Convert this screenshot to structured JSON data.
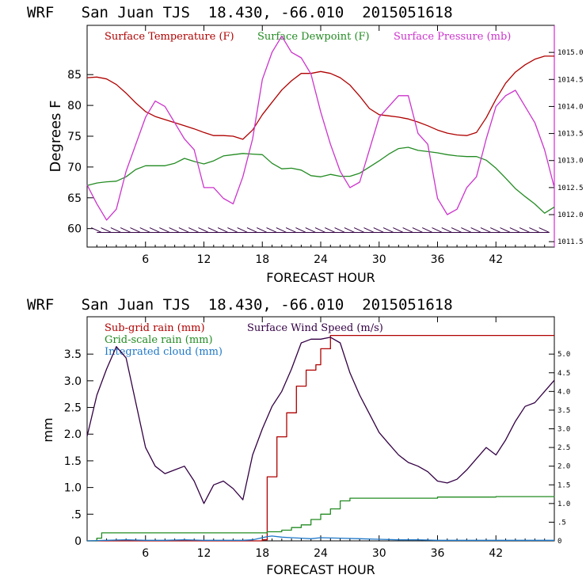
{
  "chart_data": [
    {
      "type": "line",
      "title": "WRF   San Juan TJS  18.430, -66.010  2015051618",
      "xlabel": "FORECAST HOUR",
      "ylabel": "Degrees F",
      "xlim": [
        0,
        48
      ],
      "ylim": [
        57,
        93
      ],
      "y2lim": [
        1011.4,
        1015.5
      ],
      "x_ticks": [
        6,
        12,
        18,
        24,
        30,
        36,
        42
      ],
      "y_ticks": [
        60,
        65,
        70,
        75,
        80,
        85
      ],
      "y_tick_labels": [
        "60",
        "65",
        "70",
        "75",
        "80",
        "85"
      ],
      "y2_ticks": [
        1011.5,
        1012.0,
        1012.5,
        1013.0,
        1013.5,
        1014.0,
        1014.5,
        1015.0
      ],
      "y2_tick_labels": [
        "1011.5",
        "1012.0",
        "1012.5",
        "1013.0",
        "1013.5",
        "1014.0",
        "1014.5",
        "1015.0"
      ],
      "legend": [
        "Surface Temperature (F)",
        "Surface Dewpoint (F)",
        "Surface Pressure (mb)"
      ],
      "series": [
        {
          "name": "Surface Temperature (F)",
          "axis": "left",
          "color": "#b00000",
          "x": [
            0,
            1,
            2,
            3,
            4,
            5,
            6,
            7,
            8,
            9,
            10,
            11,
            12,
            13,
            14,
            15,
            16,
            17,
            18,
            19,
            20,
            21,
            22,
            23,
            24,
            25,
            26,
            27,
            28,
            29,
            30,
            31,
            32,
            33,
            34,
            35,
            36,
            37,
            38,
            39,
            40,
            41,
            42,
            43,
            44,
            45,
            46,
            47,
            48
          ],
          "values": [
            84.5,
            84.6,
            84.3,
            83.4,
            82,
            80.4,
            79,
            78.2,
            77.7,
            77.2,
            76.7,
            76.2,
            75.6,
            75.1,
            75.1,
            75,
            74.5,
            76,
            78.5,
            80.5,
            82.5,
            84,
            85.2,
            85.2,
            85.5,
            85.2,
            84.5,
            83.3,
            81.5,
            79.5,
            78.5,
            78.3,
            78.1,
            77.8,
            77.3,
            76.7,
            76,
            75.5,
            75.2,
            75.1,
            75.6,
            78,
            81,
            83.6,
            85.4,
            86.6,
            87.5,
            88,
            88
          ]
        },
        {
          "name": "Surface Dewpoint (F)",
          "axis": "left",
          "color": "#228b22",
          "x": [
            0,
            1,
            2,
            3,
            4,
            5,
            6,
            7,
            8,
            9,
            10,
            11,
            12,
            13,
            14,
            15,
            16,
            17,
            18,
            19,
            20,
            21,
            22,
            23,
            24,
            25,
            26,
            27,
            28,
            29,
            30,
            31,
            32,
            33,
            34,
            35,
            36,
            37,
            38,
            39,
            40,
            41,
            42,
            43,
            44,
            45,
            46,
            47,
            48
          ],
          "values": [
            67,
            67.4,
            67.6,
            67.7,
            68.4,
            69.6,
            70.2,
            70.2,
            70.2,
            70.6,
            71.4,
            70.9,
            70.5,
            71,
            71.8,
            72,
            72.2,
            72.1,
            72,
            70.6,
            69.7,
            69.8,
            69.5,
            68.6,
            68.4,
            68.8,
            68.5,
            68.5,
            69,
            70,
            71,
            72.1,
            73,
            73.2,
            72.7,
            72.5,
            72.3,
            72,
            71.8,
            71.7,
            71.7,
            71.1,
            69.8,
            68.2,
            66.5,
            65.2,
            64,
            62.5,
            63.5
          ]
        },
        {
          "name": "Surface Pressure (mb)",
          "axis": "right",
          "color": "#cc33cc",
          "x": [
            0,
            1,
            2,
            3,
            4,
            5,
            6,
            7,
            8,
            9,
            10,
            11,
            12,
            13,
            14,
            15,
            16,
            17,
            18,
            19,
            20,
            21,
            22,
            23,
            24,
            25,
            26,
            27,
            28,
            29,
            30,
            31,
            32,
            33,
            34,
            35,
            36,
            37,
            38,
            39,
            40,
            41,
            42,
            43,
            44,
            45,
            46,
            47,
            48
          ],
          "values": [
            1012.55,
            1012.2,
            1011.9,
            1012.1,
            1012.8,
            1013.3,
            1013.8,
            1014.1,
            1014.0,
            1013.7,
            1013.4,
            1013.2,
            1012.5,
            1012.5,
            1012.3,
            1012.2,
            1012.7,
            1013.4,
            1014.5,
            1015.0,
            1015.3,
            1015.0,
            1014.9,
            1014.6,
            1013.9,
            1013.3,
            1012.8,
            1012.5,
            1012.6,
            1013.2,
            1013.8,
            1014.0,
            1014.2,
            1014.2,
            1013.5,
            1013.3,
            1012.3,
            1012.0,
            1012.1,
            1012.5,
            1012.7,
            1013.4,
            1014.0,
            1014.2,
            1014.3,
            1014.0,
            1013.7,
            1013.2,
            1012.5
          ]
        },
        {
          "name": "wind barbs",
          "axis": "left",
          "color": "#330044",
          "y_level": 59.5,
          "x": [
            1,
            2,
            3,
            4,
            5,
            6,
            7,
            8,
            9,
            10,
            11,
            12,
            13,
            14,
            15,
            16,
            17,
            18,
            19,
            20,
            21,
            22,
            23,
            24,
            25,
            26,
            27,
            28,
            29,
            30,
            31,
            32,
            33,
            34,
            35,
            36,
            37,
            38,
            39,
            40,
            41,
            42,
            43,
            44,
            45,
            46,
            47
          ]
        }
      ]
    },
    {
      "type": "line",
      "title": "WRF   San Juan TJS  18.430, -66.010  2015051618",
      "xlabel": "FORECAST HOUR",
      "ylabel": "mm",
      "xlim": [
        0,
        48
      ],
      "ylim": [
        0,
        4.2
      ],
      "y2lim": [
        0,
        6.0
      ],
      "x_ticks": [
        6,
        12,
        18,
        24,
        30,
        36,
        42
      ],
      "y_ticks": [
        0,
        0.5,
        1.0,
        1.5,
        2.0,
        2.5,
        3.0,
        3.5
      ],
      "y_tick_labels": [
        "0",
        ".5",
        "1.0",
        "1.5",
        "2.0",
        "2.5",
        "3.0",
        "3.5"
      ],
      "y2_ticks": [
        0,
        0.5,
        1.0,
        1.5,
        2.0,
        2.5,
        3.0,
        3.5,
        4.0,
        4.5,
        5.0
      ],
      "y2_tick_labels": [
        "0",
        ".5",
        "1.0",
        "1.5",
        "2.0",
        "2.5",
        "3.0",
        "3.5",
        "4.0",
        "4.5",
        "5.0"
      ],
      "legend": [
        "Sub-grid rain (mm)",
        "Grid-scale rain (mm)",
        "Integrated cloud (mm)",
        "Surface Wind Speed (m/s)"
      ],
      "series": [
        {
          "name": "Sub-grid rain (mm)",
          "axis": "left",
          "color": "#b00000",
          "step": true,
          "x": [
            0,
            18,
            18.5,
            19.5,
            20.5,
            21.5,
            22.5,
            23.5,
            24,
            25,
            48
          ],
          "values": [
            0,
            0.02,
            1.2,
            1.95,
            2.4,
            2.9,
            3.2,
            3.3,
            3.6,
            3.85,
            3.85
          ]
        },
        {
          "name": "Grid-scale rain (mm)",
          "axis": "left",
          "color": "#228b22",
          "step": true,
          "x": [
            0,
            1,
            1.5,
            17,
            18.5,
            20,
            21,
            22,
            23,
            24,
            25,
            26,
            27,
            30,
            36,
            42,
            48
          ],
          "values": [
            0,
            0.05,
            0.15,
            0.15,
            0.17,
            0.2,
            0.25,
            0.3,
            0.4,
            0.5,
            0.6,
            0.75,
            0.8,
            0.8,
            0.82,
            0.83,
            0.84
          ]
        },
        {
          "name": "Integrated cloud (mm)",
          "axis": "left",
          "color": "#1f78c8",
          "x": [
            0,
            2,
            4,
            6,
            8,
            10,
            12,
            14,
            16,
            17,
            18,
            18.5,
            19,
            20,
            21,
            22,
            23,
            24,
            26,
            28,
            30,
            32,
            34,
            36,
            38,
            40,
            42,
            44,
            46,
            48
          ],
          "values": [
            0,
            0.01,
            0.02,
            0.01,
            0.01,
            0.02,
            0.01,
            0.01,
            0.01,
            0.02,
            0.06,
            0.08,
            0.09,
            0.07,
            0.06,
            0.05,
            0.04,
            0.06,
            0.05,
            0.04,
            0.03,
            0.02,
            0.02,
            0.01,
            0.01,
            0.01,
            0.01,
            0.01,
            0.01,
            0.01
          ]
        },
        {
          "name": "Surface Wind Speed (m/s)",
          "axis": "right",
          "color": "#330044",
          "x": [
            0,
            1,
            2,
            3,
            4,
            5,
            6,
            7,
            8,
            9,
            10,
            11,
            12,
            13,
            14,
            15,
            16,
            17,
            18,
            19,
            20,
            21,
            22,
            23,
            24,
            25,
            26,
            27,
            28,
            29,
            30,
            31,
            32,
            33,
            34,
            35,
            36,
            37,
            38,
            39,
            40,
            41,
            42,
            43,
            44,
            45,
            46,
            47,
            48
          ],
          "values": [
            2.8,
            3.9,
            4.6,
            5.2,
            4.9,
            3.7,
            2.5,
            2.0,
            1.8,
            1.9,
            2.0,
            1.6,
            1.0,
            1.5,
            1.6,
            1.4,
            1.1,
            2.3,
            3.0,
            3.6,
            4.0,
            4.6,
            5.3,
            5.4,
            5.4,
            5.45,
            5.3,
            4.5,
            3.9,
            3.4,
            2.9,
            2.6,
            2.3,
            2.1,
            2.0,
            1.85,
            1.6,
            1.55,
            1.65,
            1.9,
            2.2,
            2.5,
            2.3,
            2.7,
            3.2,
            3.6,
            3.7,
            4.0,
            4.3
          ]
        }
      ]
    }
  ]
}
